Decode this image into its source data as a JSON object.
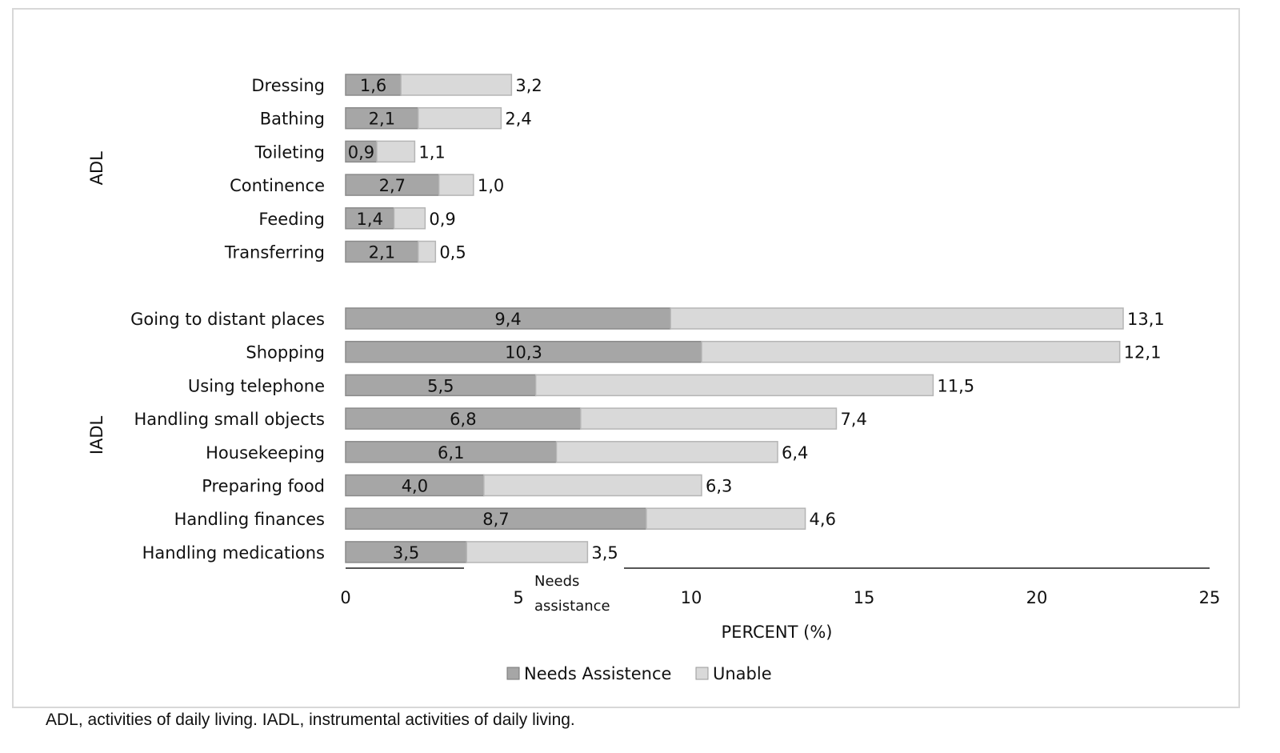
{
  "chart_data": {
    "type": "bar",
    "orientation": "horizontal",
    "stacked": true,
    "groups": [
      {
        "name": "ADL",
        "categories": [
          "Dressing",
          "Bathing",
          "Toileting",
          "Continence",
          "Feeding",
          "Transferring"
        ],
        "needs_assistence": [
          1.6,
          2.1,
          0.9,
          2.7,
          1.4,
          2.1
        ],
        "unable": [
          3.2,
          2.4,
          1.1,
          1.0,
          0.9,
          0.5
        ]
      },
      {
        "name": "IADL",
        "categories": [
          "Going to distant places",
          "Shopping",
          "Using telephone",
          "Handling small objects",
          "Housekeeping",
          "Preparing food",
          "Handling finances",
          "Handling medications"
        ],
        "needs_assistence": [
          9.4,
          10.3,
          5.5,
          6.8,
          6.1,
          4.0,
          8.7,
          3.5
        ],
        "unable": [
          13.1,
          12.1,
          11.5,
          7.4,
          6.4,
          6.3,
          4.6,
          3.5
        ]
      }
    ],
    "series": [
      {
        "name": "Needs Assistence",
        "color": "#a6a6a6"
      },
      {
        "name": "Unable",
        "color": "#d9d9d9"
      }
    ],
    "xlabel": "PERCENT (%)",
    "xlim": [
      0,
      25
    ],
    "xticks": [
      "0",
      "5",
      "10",
      "15",
      "20",
      "25"
    ],
    "annotation": "Needs assistance",
    "legend_position": "bottom",
    "grid": false
  },
  "caption": "ADL, activities of daily living. IADL, instrumental activities of daily living."
}
